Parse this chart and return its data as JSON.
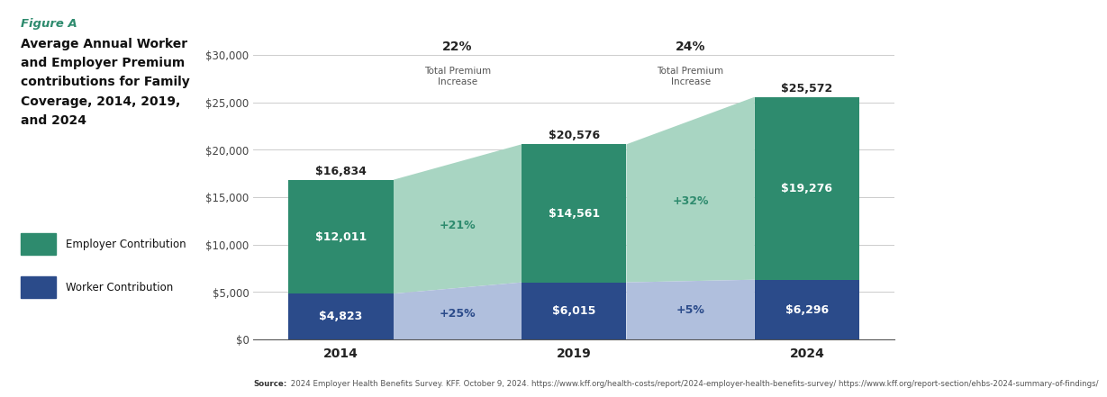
{
  "years": [
    "2014",
    "2019",
    "2024"
  ],
  "employer": [
    12011,
    14561,
    19276
  ],
  "worker": [
    4823,
    6015,
    6296
  ],
  "totals": [
    16834,
    20576,
    25572
  ],
  "employer_color": "#2e8b6e",
  "worker_color": "#2b4b8a",
  "connector_employer_color": "#a8d5c2",
  "connector_worker_color": "#b0bfdd",
  "ylim": [
    0,
    32000
  ],
  "yticks": [
    0,
    5000,
    10000,
    15000,
    20000,
    25000,
    30000
  ],
  "title_line1": "Average Annual Worker",
  "title_line2": "and Employer Premium",
  "title_line3": "contributions for Family",
  "title_line4": "Coverage, 2014, 2019,",
  "title_line5": "and 2024",
  "figure_a": "Figure A",
  "legend_employer": "Employer Contribution",
  "legend_worker": "Worker Contribution",
  "source_bold": "Source:",
  "source_text": " 2024 Employer Health Benefits Survey. KFF. October 9, 2024. ",
  "source_url": "https://www.kff.org/health-costs/report/2024-employer-health-benefits-survey/",
  "source_url2": " https://www.kff.org/report-section/ehbs-2024-summary-of-findings/",
  "pct_employer_2014_2019": "+21%",
  "pct_worker_2014_2019": "+25%",
  "pct_employer_2019_2024": "+32%",
  "pct_worker_2019_2024": "+5%",
  "pct_total_2014_2019": "22%",
  "pct_total_2014_2019_label": "Total Premium\nIncrease",
  "pct_total_2019_2024": "24%",
  "pct_total_2019_2024_label": "Total Premium\nIncrease",
  "background_color": "#ffffff"
}
